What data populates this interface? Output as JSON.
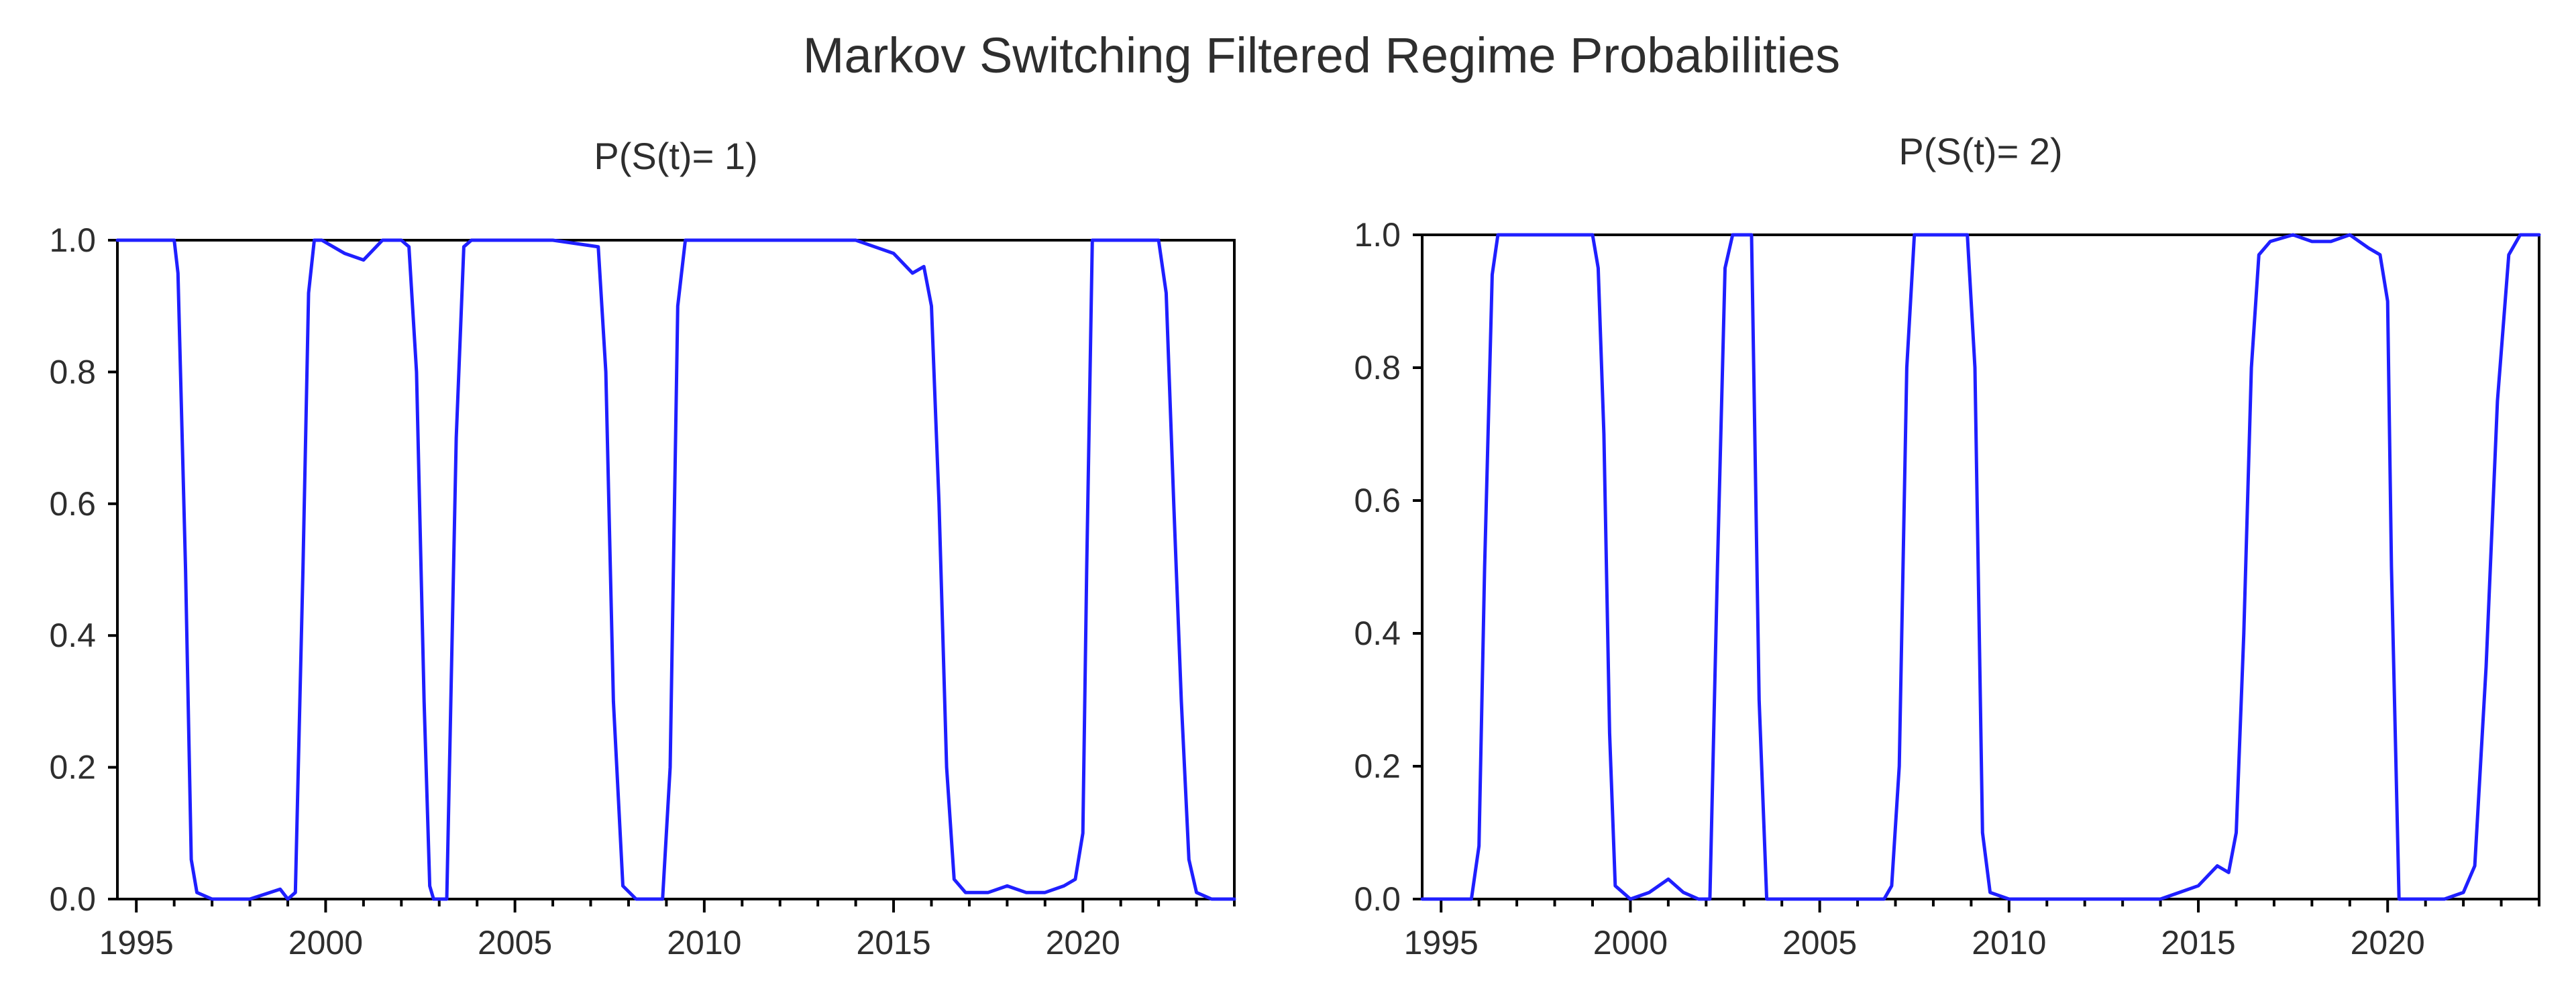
{
  "title": "Markov Switching Filtered Regime Probabilities",
  "colors": {
    "series": "#1f1fff",
    "frame": "#000000",
    "text": "#2e2e2e"
  },
  "chart_data": [
    {
      "type": "line",
      "title": "P(S(t)= 1)",
      "xlabel": "",
      "ylabel": "",
      "xlim": [
        1994.5,
        2024.0
      ],
      "ylim": [
        0.0,
        1.0
      ],
      "x_ticks": [
        1995,
        2000,
        2005,
        2010,
        2015,
        2020
      ],
      "y_ticks": [
        0.0,
        0.2,
        0.4,
        0.6,
        0.8,
        1.0
      ],
      "y_tick_labels": [
        "0.0",
        "0.2",
        "0.4",
        "0.6",
        "0.8",
        "1.0"
      ],
      "grid": false,
      "series": [
        {
          "x": [
            1994.5,
            1996.0,
            1996.1,
            1996.3,
            1996.45,
            1996.6,
            1997.0,
            1998.0,
            1998.8,
            1999.0,
            1999.2,
            1999.4,
            1999.55,
            1999.7,
            1999.9,
            2000.5,
            2001.0,
            2001.5,
            2002.0,
            2002.2,
            2002.4,
            2002.6,
            2002.75,
            2002.85,
            2003.2,
            2003.45,
            2003.65,
            2003.85,
            2006.0,
            2007.2,
            2007.4,
            2007.6,
            2007.85,
            2008.2,
            2008.9,
            2009.1,
            2009.3,
            2009.5,
            2010.0,
            2014.0,
            2014.5,
            2015.0,
            2015.5,
            2015.8,
            2016.0,
            2016.2,
            2016.4,
            2016.6,
            2016.9,
            2017.5,
            2018.0,
            2018.5,
            2019.0,
            2019.5,
            2019.8,
            2020.0,
            2020.1,
            2020.25,
            2022.0,
            2022.2,
            2022.4,
            2022.6,
            2022.8,
            2023.0,
            2023.4,
            2023.7,
            2024.0
          ],
          "y": [
            1.0,
            1.0,
            0.95,
            0.5,
            0.06,
            0.01,
            0.0,
            0.0,
            0.015,
            0.0,
            0.01,
            0.5,
            0.92,
            1.0,
            1.0,
            0.98,
            0.97,
            1.0,
            1.0,
            0.99,
            0.8,
            0.3,
            0.02,
            0.0,
            0.0,
            0.7,
            0.99,
            1.0,
            1.0,
            0.99,
            0.8,
            0.3,
            0.02,
            0.0,
            0.0,
            0.2,
            0.9,
            1.0,
            1.0,
            1.0,
            0.99,
            0.98,
            0.95,
            0.96,
            0.9,
            0.6,
            0.2,
            0.03,
            0.01,
            0.01,
            0.02,
            0.01,
            0.01,
            0.02,
            0.03,
            0.1,
            0.5,
            1.0,
            1.0,
            0.92,
            0.6,
            0.3,
            0.06,
            0.01,
            0.0,
            0.0,
            0.0
          ]
        }
      ]
    },
    {
      "type": "line",
      "title": "P(S(t)= 2)",
      "xlabel": "",
      "ylabel": "",
      "xlim": [
        1994.5,
        2024.0
      ],
      "ylim": [
        0.0,
        1.0
      ],
      "x_ticks": [
        1995,
        2000,
        2005,
        2010,
        2015,
        2020
      ],
      "y_ticks": [
        0.0,
        0.2,
        0.4,
        0.6,
        0.8,
        1.0
      ],
      "y_tick_labels": [
        "0.0",
        "0.2",
        "0.4",
        "0.6",
        "0.8",
        "1.0"
      ],
      "grid": false,
      "series": [
        {
          "x": [
            1994.5,
            1995.8,
            1996.0,
            1996.15,
            1996.35,
            1996.5,
            1999.0,
            1999.15,
            1999.3,
            1999.45,
            1999.6,
            2000.0,
            2000.5,
            2001.0,
            2001.4,
            2001.8,
            2002.1,
            2002.3,
            2002.5,
            2002.7,
            2003.2,
            2003.4,
            2003.6,
            2006.7,
            2006.9,
            2007.1,
            2007.3,
            2007.5,
            2008.9,
            2009.1,
            2009.3,
            2009.5,
            2010.0,
            2014.0,
            2014.5,
            2015.0,
            2015.5,
            2015.8,
            2016.0,
            2016.2,
            2016.4,
            2016.6,
            2016.9,
            2017.5,
            2018.0,
            2018.5,
            2019.0,
            2019.5,
            2019.8,
            2020.0,
            2020.1,
            2020.3,
            2021.5,
            2022.0,
            2022.3,
            2022.6,
            2022.9,
            2023.2,
            2023.5,
            2024.0
          ],
          "y": [
            0.0,
            0.0,
            0.08,
            0.5,
            0.94,
            1.0,
            1.0,
            0.95,
            0.7,
            0.25,
            0.02,
            0.0,
            0.01,
            0.03,
            0.01,
            0.0,
            0.0,
            0.5,
            0.95,
            1.0,
            1.0,
            0.3,
            0.0,
            0.0,
            0.02,
            0.2,
            0.8,
            1.0,
            1.0,
            0.8,
            0.1,
            0.01,
            0.0,
            0.0,
            0.01,
            0.02,
            0.05,
            0.04,
            0.1,
            0.4,
            0.8,
            0.97,
            0.99,
            1.0,
            0.99,
            0.99,
            1.0,
            0.98,
            0.97,
            0.9,
            0.5,
            0.0,
            0.0,
            0.01,
            0.05,
            0.35,
            0.75,
            0.97,
            1.0,
            1.0
          ]
        }
      ]
    }
  ]
}
